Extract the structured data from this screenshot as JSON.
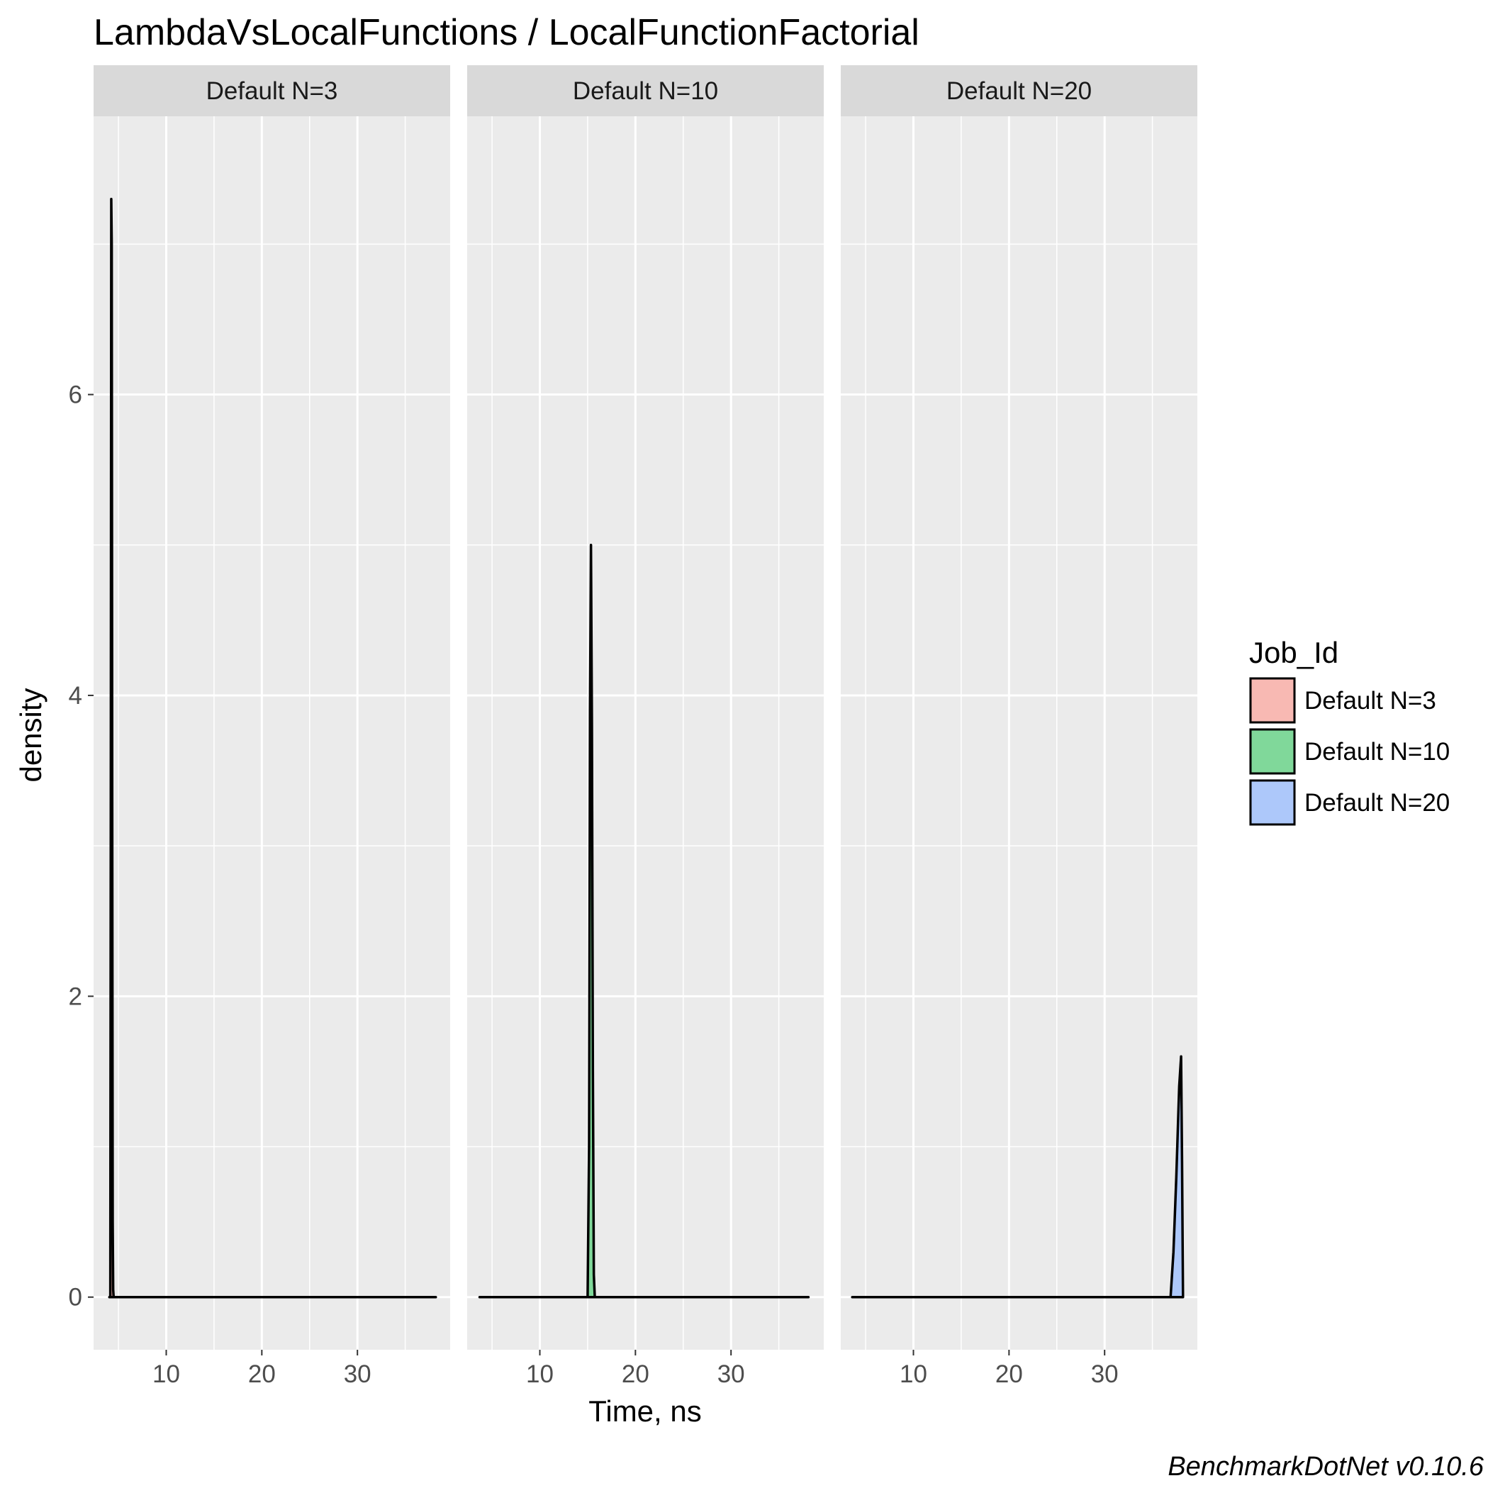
{
  "chart_data": {
    "type": "area",
    "subtype": "density",
    "title": "LambdaVsLocalFunctions / LocalFunctionFactorial",
    "xlabel": "Time, ns",
    "ylabel": "density",
    "caption": "BenchmarkDotNet v0.10.6",
    "xlim": [
      2.4,
      39.7
    ],
    "ylim": [
      -0.35,
      7.85
    ],
    "x_ticks": [
      10,
      20,
      30
    ],
    "y_ticks": [
      0,
      2,
      4,
      6
    ],
    "grid": true,
    "legend": {
      "title": "Job_Id",
      "position": "right",
      "entries": [
        {
          "label": "Default N=3",
          "color": "#F8B9B3"
        },
        {
          "label": "Default N=10",
          "color": "#80D89A"
        },
        {
          "label": "Default N=20",
          "color": "#ADC8FA"
        }
      ]
    },
    "facets": [
      {
        "label": "Default N=3",
        "fill": "#F8B9B3",
        "x": [
          4.05,
          4.15,
          4.2,
          4.25,
          4.3,
          4.35,
          4.4,
          4.45,
          4.5,
          38.2
        ],
        "y": [
          0,
          0,
          3.2,
          7.3,
          7.0,
          3.3,
          0.5,
          0.05,
          0,
          0
        ]
      },
      {
        "label": "Default N=10",
        "fill": "#80D89A",
        "x": [
          3.7,
          15.0,
          15.15,
          15.25,
          15.35,
          15.45,
          15.55,
          15.65,
          15.75,
          38.1
        ],
        "y": [
          0,
          0,
          1.0,
          3.9,
          5.0,
          3.8,
          1.5,
          0.15,
          0,
          0
        ]
      },
      {
        "label": "Default N=20",
        "fill": "#ADC8FA",
        "x": [
          3.6,
          36.9,
          37.2,
          37.5,
          37.8,
          38.0,
          38.1,
          38.2
        ],
        "y": [
          0,
          0,
          0.3,
          0.8,
          1.4,
          1.6,
          0.9,
          0
        ]
      }
    ]
  }
}
